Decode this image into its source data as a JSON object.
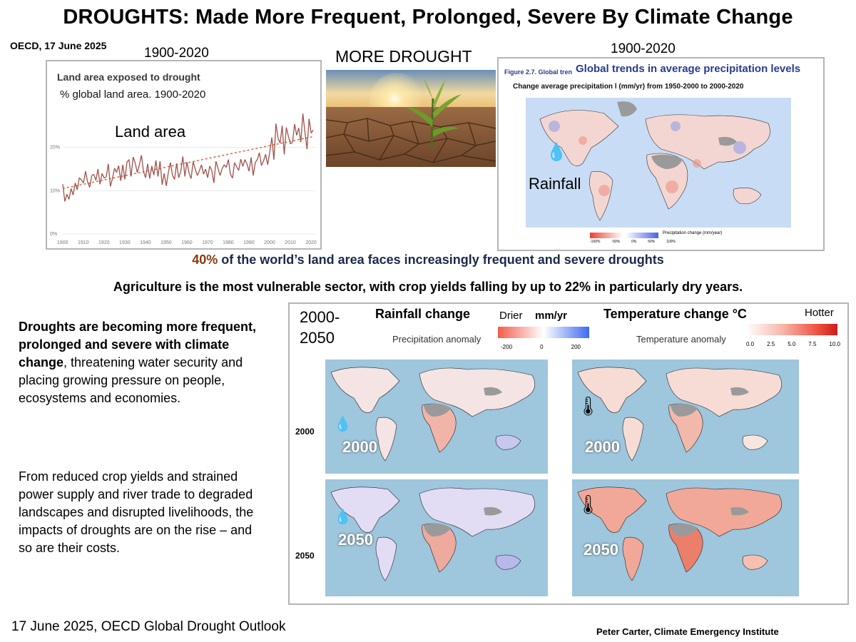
{
  "title": "DROUGHTS: Made More Frequent, Prolonged, Severe By Climate Change",
  "source": "OECD, 17 June 2025",
  "left_panel": {
    "period": "1900-2020",
    "chart_title": "Land area exposed to drought",
    "chart_subtitle": "% global land area.  1900-2020",
    "overlay_label": "Land area",
    "y_ticks": [
      "0%",
      "10%",
      "20%"
    ],
    "x_ticks": [
      "1900",
      "1910",
      "1920",
      "1930",
      "1940",
      "1950",
      "1960",
      "1970",
      "1980",
      "1990",
      "2000",
      "2010",
      "2020"
    ]
  },
  "chart_data": {
    "type": "line",
    "title": "Land area exposed to drought",
    "subtitle": "% global land area.  1900-2020",
    "xlabel": "",
    "ylabel": "",
    "ylim": [
      0,
      30
    ],
    "xlim": [
      1900,
      2022
    ],
    "grid": true,
    "x": [
      1900,
      1901,
      1902,
      1903,
      1904,
      1905,
      1906,
      1907,
      1908,
      1909,
      1910,
      1911,
      1912,
      1913,
      1914,
      1915,
      1916,
      1917,
      1918,
      1919,
      1920,
      1921,
      1922,
      1923,
      1924,
      1925,
      1926,
      1927,
      1928,
      1929,
      1930,
      1931,
      1932,
      1933,
      1934,
      1935,
      1936,
      1937,
      1938,
      1939,
      1940,
      1941,
      1942,
      1943,
      1944,
      1945,
      1946,
      1947,
      1948,
      1949,
      1950,
      1951,
      1952,
      1953,
      1954,
      1955,
      1956,
      1957,
      1958,
      1959,
      1960,
      1961,
      1962,
      1963,
      1964,
      1965,
      1966,
      1967,
      1968,
      1969,
      1970,
      1971,
      1972,
      1973,
      1974,
      1975,
      1976,
      1977,
      1978,
      1979,
      1980,
      1981,
      1982,
      1983,
      1984,
      1985,
      1986,
      1987,
      1988,
      1989,
      1990,
      1991,
      1992,
      1993,
      1994,
      1995,
      1996,
      1997,
      1998,
      1999,
      2000,
      2001,
      2002,
      2003,
      2004,
      2005,
      2006,
      2007,
      2008,
      2009,
      2010,
      2011,
      2012,
      2013,
      2014,
      2015,
      2016,
      2017,
      2018,
      2019,
      2020,
      2021
    ],
    "series": [
      {
        "values": [
          11.5,
          7.5,
          9.2,
          8.0,
          10.5,
          9.0,
          11.8,
          10.2,
          13.0,
          12.5,
          11.8,
          14.5,
          12.0,
          10.8,
          13.5,
          13.8,
          12.4,
          15.0,
          11.5,
          14.0,
          12.9,
          13.2,
          16.2,
          11.0,
          12.8,
          15.2,
          14.2,
          15.8,
          12.3,
          16.0,
          12.6,
          16.6,
          17.2,
          13.3,
          17.8,
          16.4,
          14.2,
          16.0,
          18.2,
          14.5,
          13.0,
          16.2,
          12.8,
          15.7,
          13.6,
          17.0,
          13.3,
          16.8,
          11.4,
          14.0,
          11.1,
          14.2,
          16.5,
          13.6,
          12.6,
          16.3,
          13.0,
          14.4,
          17.9,
          13.3,
          16.6,
          14.1,
          12.8,
          16.7,
          15.0,
          13.5,
          14.6,
          16.0,
          13.8,
          15.0,
          13.0,
          15.7,
          14.6,
          11.8,
          16.8,
          15.2,
          13.5,
          15.1,
          16.0,
          15.4,
          17.2,
          13.8,
          12.9,
          16.5,
          15.5,
          14.7,
          17.3,
          15.6,
          17.2,
          16.2,
          14.5,
          17.7,
          13.5,
          16.5,
          17.2,
          18.8,
          15.8,
          16.9,
          18.4,
          16.0,
          18.9,
          22.3,
          17.2,
          25.5,
          22.1,
          21.0,
          25.0,
          18.4,
          24.6,
          22.6,
          20.8,
          21.2,
          25.4,
          22.8,
          24.5,
          21.2,
          27.8,
          23.5,
          19.6,
          26.6,
          23.3,
          24.0
        ]
      }
    ],
    "trend": {
      "start": [
        1900,
        10.5
      ],
      "end": [
        2021,
        22.5
      ],
      "style": "dashed"
    }
  },
  "center_image": {
    "label": "MORE DROUGHT"
  },
  "right_panel": {
    "period": "1900-2020",
    "figure_label": "Figure 2.7. Global tren",
    "title": "Global trends in average precipitation levels",
    "subtitle": "Change average precipitation l (mm/yr) from 1950-2000 to 2000-2020",
    "overlay_label": "Rainfall",
    "legend_title": "Precipitation change (mm/year)",
    "legend_ticks": [
      "-100%",
      "-50%",
      "0%",
      "50%",
      "100%"
    ]
  },
  "headline": {
    "pct": "40%",
    "rest": " of the world’s land area faces increasingly frequent and severe droughts"
  },
  "agriculture_line": "Agriculture is the most vulnerable sector, with crop yields falling by up to 22% in particularly dry years.",
  "body": {
    "bold": "Droughts are becoming more frequent, prolonged and severe with climate change",
    "after_bold": ", threatening water security and placing growing pressure on people, ecosystems and economies.",
    "para2": "From reduced crop yields and strained power supply and river trade to degraded landscapes and disrupted livelihoods, the impacts of droughts are on the rise – and so are their costs."
  },
  "projection": {
    "period_line1": "2000-",
    "period_line2": "2050",
    "rain_title": "Rainfall change",
    "rain_scale_left": "Drier",
    "rain_unit": "mm/yr",
    "rain_caption": "Precipitation anomaly",
    "rain_ticks": [
      "-200",
      "0",
      "200"
    ],
    "temp_title": "Temperature change °C",
    "temp_scale_right": "Hotter",
    "temp_caption": "Temperature anomaly",
    "temp_ticks": [
      "0.0",
      "2.5",
      "5.0",
      "7.5",
      "10.0"
    ],
    "row_labels": [
      "2000",
      "2050"
    ],
    "map_labels": [
      "2000",
      "2000",
      "2050",
      "2050"
    ]
  },
  "footer_left": "17 June 2025,  OECD Global Drought Outlook",
  "footer_right": "Peter Carter,  Climate Emergency Institute",
  "colors": {
    "drought_line": "#a0524a",
    "ocean": "#9ec6dd",
    "dry_red": "#e8432f",
    "wet_blue": "#4b63e0",
    "headline_pct": "#8a3a0c",
    "figure_blue": "#2a3a8f"
  }
}
